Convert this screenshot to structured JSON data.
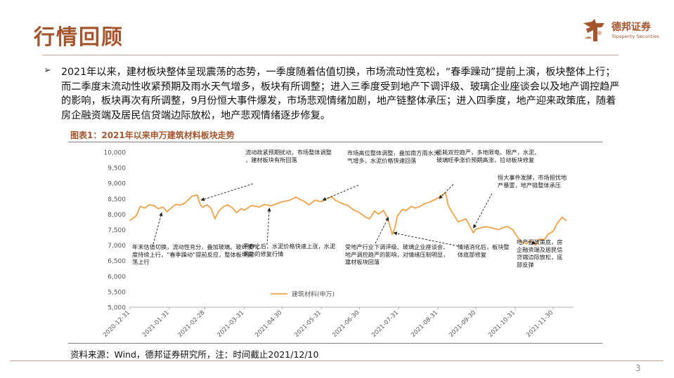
{
  "slide": {
    "title": "行情回顾",
    "logo_cn": "德邦证券",
    "logo_en": "Topsperity Securities",
    "bullet_symbol": "➢",
    "bullet": "2021年以来，建材板块整体呈现震荡的态势，一季度随着估值切换，市场流动性宽松，“春季躁动”提前上演，板块整体上行；而二季度末流动性收紧预期及雨水天气增多，板块有所调整；进入三季度受到地产下调评级、玻璃企业座谈会以及地产调控趋严的影响，板块再次有所调整，9月份恒大事件爆发，市场悲观情绪加剧，地产链整体承压；进入四季度，地产迎来政策底，随着房企融资端及居民信贷端边际放松，地产悲观情绪逐步修复。",
    "figure_title": "图表1：2021年以来申万建筑材料板块走势",
    "source": "资料来源：Wind，德邦证券研究所，注：时间截止2021/12/10",
    "page_number": "3",
    "accent_color": "#a5552d",
    "line_color": "#f0a24a"
  },
  "chart_data": {
    "type": "line",
    "legend_position": "bottom-center",
    "grid": false,
    "ylim": [
      5000,
      10000
    ],
    "yticks": [
      "10,000",
      "9,500",
      "9,000",
      "8,500",
      "8,000",
      "7,500",
      "7,000",
      "6,500",
      "6,000",
      "5,500",
      "5,000"
    ],
    "xticks": [
      "2020-12-31",
      "2021-01-31",
      "2021-02-28",
      "2021-03-31",
      "2021-04-30",
      "2021-05-31",
      "2021-06-30",
      "2021-07-31",
      "2021-08-31",
      "2021-09-30",
      "2021-10-31",
      "2021-11-30"
    ],
    "series": [
      {
        "name": "建筑材料(申万)",
        "color": "#f0a24a",
        "points": [
          [
            "2020-12-31",
            7800
          ],
          [
            "2021-01-05",
            7950
          ],
          [
            "2021-01-08",
            8250
          ],
          [
            "2021-01-12",
            8200
          ],
          [
            "2021-01-15",
            8300
          ],
          [
            "2021-01-19",
            8280
          ],
          [
            "2021-01-22",
            8180
          ],
          [
            "2021-01-26",
            8230
          ],
          [
            "2021-01-29",
            8080
          ],
          [
            "2021-02-02",
            8220
          ],
          [
            "2021-02-05",
            8310
          ],
          [
            "2021-02-09",
            8300
          ],
          [
            "2021-02-12",
            8350
          ],
          [
            "2021-02-18",
            8580
          ],
          [
            "2021-02-22",
            8620
          ],
          [
            "2021-02-24",
            8350
          ],
          [
            "2021-02-26",
            8220
          ],
          [
            "2021-03-02",
            8300
          ],
          [
            "2021-03-05",
            8180
          ],
          [
            "2021-03-08",
            7850
          ],
          [
            "2021-03-11",
            8100
          ],
          [
            "2021-03-15",
            8250
          ],
          [
            "2021-03-18",
            8300
          ],
          [
            "2021-03-22",
            8200
          ],
          [
            "2021-03-25",
            8050
          ],
          [
            "2021-03-29",
            8180
          ],
          [
            "2021-03-31",
            8130
          ],
          [
            "2021-04-06",
            8280
          ],
          [
            "2021-04-12",
            8230
          ],
          [
            "2021-04-16",
            8310
          ],
          [
            "2021-04-21",
            8270
          ],
          [
            "2021-04-26",
            8340
          ],
          [
            "2021-04-30",
            8400
          ],
          [
            "2021-05-06",
            8450
          ],
          [
            "2021-05-11",
            8550
          ],
          [
            "2021-05-14",
            8480
          ],
          [
            "2021-05-18",
            8400
          ],
          [
            "2021-05-21",
            8300
          ],
          [
            "2021-05-26",
            8450
          ],
          [
            "2021-05-31",
            8400
          ],
          [
            "2021-06-04",
            8500
          ],
          [
            "2021-06-08",
            8560
          ],
          [
            "2021-06-11",
            8450
          ],
          [
            "2021-06-16",
            8350
          ],
          [
            "2021-06-21",
            8280
          ],
          [
            "2021-06-25",
            8150
          ],
          [
            "2021-06-30",
            8050
          ],
          [
            "2021-07-05",
            7900
          ],
          [
            "2021-07-08",
            7850
          ],
          [
            "2021-07-12",
            8100
          ],
          [
            "2021-07-15",
            8000
          ],
          [
            "2021-07-19",
            8120
          ],
          [
            "2021-07-22",
            7900
          ],
          [
            "2021-07-26",
            7350
          ],
          [
            "2021-07-28",
            7550
          ],
          [
            "2021-07-30",
            7950
          ],
          [
            "2021-08-03",
            8150
          ],
          [
            "2021-08-06",
            8120
          ],
          [
            "2021-08-10",
            8250
          ],
          [
            "2021-08-13",
            8200
          ],
          [
            "2021-08-17",
            8250
          ],
          [
            "2021-08-20",
            8330
          ],
          [
            "2021-08-25",
            8400
          ],
          [
            "2021-08-30",
            8500
          ],
          [
            "2021-09-02",
            8580
          ],
          [
            "2021-09-06",
            8700
          ],
          [
            "2021-09-08",
            8300
          ],
          [
            "2021-09-10",
            8150
          ],
          [
            "2021-09-13",
            7950
          ],
          [
            "2021-09-16",
            7750
          ],
          [
            "2021-09-22",
            7850
          ],
          [
            "2021-09-24",
            7700
          ],
          [
            "2021-09-28",
            7400
          ],
          [
            "2021-09-30",
            7520
          ],
          [
            "2021-10-08",
            7600
          ],
          [
            "2021-10-13",
            7550
          ],
          [
            "2021-10-18",
            7500
          ],
          [
            "2021-10-21",
            7560
          ],
          [
            "2021-10-25",
            7600
          ],
          [
            "2021-10-29",
            7500
          ],
          [
            "2021-11-02",
            7250
          ],
          [
            "2021-11-05",
            7100
          ],
          [
            "2021-11-09",
            7050
          ],
          [
            "2021-11-12",
            7150
          ],
          [
            "2021-11-16",
            7000
          ],
          [
            "2021-11-19",
            7200
          ],
          [
            "2021-11-23",
            7180
          ],
          [
            "2021-11-26",
            7350
          ],
          [
            "2021-11-30",
            7450
          ],
          [
            "2021-12-03",
            7700
          ],
          [
            "2021-12-07",
            7900
          ],
          [
            "2021-12-10",
            7800
          ]
        ]
      }
    ],
    "annotations": [
      {
        "text": "年末估值切换，流动性充分，叠加玻璃、玻纤景气度持续上行，“春季躁动”提前反应，整体板块震荡上行",
        "date": "2021-01-25",
        "value": 8050
      },
      {
        "text": "流动政紧预期扰动，市场整体调整，建材板块有所回落",
        "date": "2021-02-25",
        "value": 8450
      },
      {
        "text": "开春之后，水泥价格快速上涨，水泥带动的修复行情",
        "date": "2021-04-20",
        "value": 8200
      },
      {
        "text": "市场高位整体调整，叠加南方雨水天气增多，水泥价格快速回落",
        "date": "2021-06-01",
        "value": 8450
      },
      {
        "text": "受地产行业下调评级、玻璃企业座谈会、地产调控趋严的影响，对情绪压制明显，建材板块回落",
        "date": "2021-07-23",
        "value": 7900
      },
      {
        "text": "情绪消化后，板块整体底部修复",
        "date": "2021-07-27",
        "value": 7400
      },
      {
        "text": "能耗双控趋严，多地限电、限产，水泥、玻璃旺季涨价预期高涨，拉动板块修复",
        "date": "2021-09-01",
        "value": 8500
      },
      {
        "text": "恒大事件发酵，市场担忧地产暴雷，地产链整体承压",
        "date": "2021-09-28",
        "value": 7550
      },
      {
        "text": "地产迎政策底，房企融资端及居民信贷端边际放松，底部反弹",
        "date": "2021-11-16",
        "value": 7050
      }
    ]
  }
}
